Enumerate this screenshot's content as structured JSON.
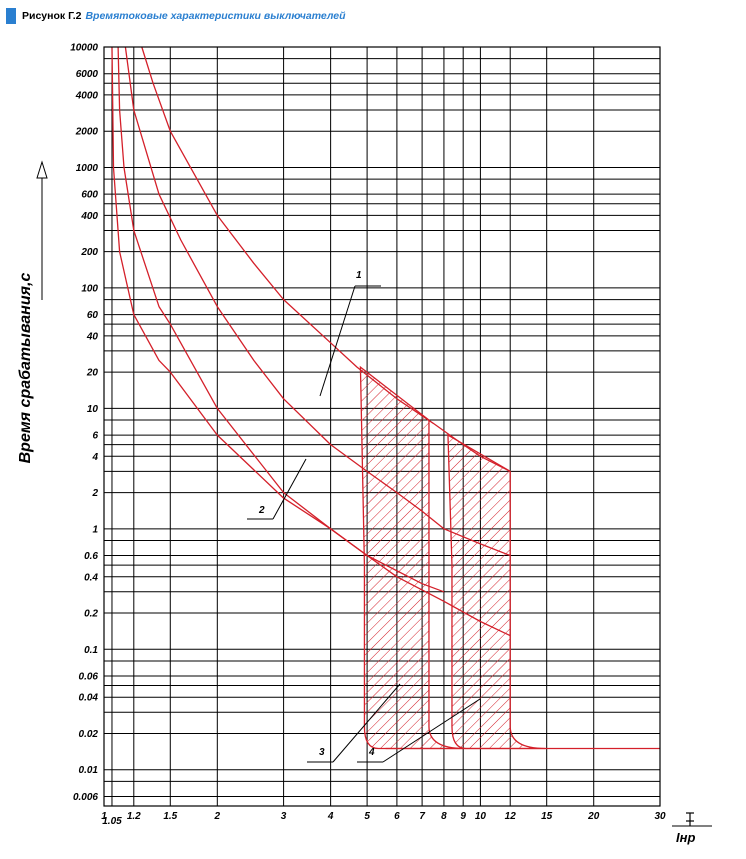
{
  "header": {
    "prefix": "Рисунок Г.2",
    "title": "Времятоковые характеристики выключателей",
    "marker_color": "#2a7fd0"
  },
  "chart_data": {
    "type": "line",
    "xscale": "log",
    "yscale": "log",
    "xlim": [
      1,
      30
    ],
    "ylim": [
      0.005,
      10000
    ],
    "ylabel": "Время срабатывания,с",
    "xlabel": "I/Iнр",
    "x_unit_label": "Iнр",
    "x_ticks": [
      "1",
      "1.05",
      "1.2",
      "1.5",
      "2",
      "3",
      "4",
      "5",
      "6",
      "7",
      "8",
      "9",
      "10",
      "12",
      "15",
      "20",
      "30"
    ],
    "x_tick_values": [
      1,
      1.05,
      1.2,
      1.5,
      2,
      3,
      4,
      5,
      6,
      7,
      8,
      9,
      10,
      12,
      15,
      20,
      30
    ],
    "x_gridlines": [
      1.05,
      1.2,
      1.5,
      2,
      3,
      4,
      5,
      6,
      7,
      8,
      9,
      10,
      12,
      15,
      20,
      30
    ],
    "y_ticks": [
      "10000",
      "6000",
      "4000",
      "2000",
      "1000",
      "600",
      "400",
      "200",
      "100",
      "60",
      "40",
      "20",
      "10",
      "6",
      "4",
      "2",
      "1",
      "0.6",
      "0.4",
      "0.2",
      "0.1",
      "0.06",
      "0.04",
      "0.02",
      "0.01",
      "0.006"
    ],
    "y_tick_values": [
      10000,
      6000,
      4000,
      2000,
      1000,
      600,
      400,
      200,
      100,
      60,
      40,
      20,
      10,
      6,
      4,
      2,
      1,
      0.6,
      0.4,
      0.2,
      0.1,
      0.06,
      0.04,
      0.02,
      0.01,
      0.006
    ],
    "y_gridlines": [
      10000,
      8000,
      6000,
      5000,
      4000,
      3000,
      2000,
      1000,
      800,
      600,
      500,
      400,
      300,
      200,
      100,
      80,
      60,
      50,
      40,
      30,
      20,
      10,
      8,
      6,
      5,
      4,
      3,
      2,
      1,
      0.8,
      0.6,
      0.5,
      0.4,
      0.3,
      0.2,
      0.1,
      0.08,
      0.06,
      0.05,
      0.04,
      0.03,
      0.02,
      0.01,
      0.008,
      0.006
    ],
    "curve_color": "#d4202a",
    "series": [
      {
        "name": "1",
        "kind": "thermal-upper",
        "x": [
          1.26,
          1.35,
          1.5,
          2,
          2.5,
          3,
          4,
          4.7,
          6,
          7.5,
          9,
          10,
          12
        ],
        "y": [
          10000,
          5000,
          2000,
          400,
          160,
          80,
          35,
          22,
          12,
          7.5,
          5,
          4,
          3
        ]
      },
      {
        "name": "1",
        "kind": "thermal-lower",
        "x": [
          1.14,
          1.2,
          1.4,
          1.6,
          2,
          2.5,
          3,
          4,
          5,
          6,
          7,
          8,
          10,
          12
        ],
        "y": [
          10000,
          3000,
          600,
          250,
          70,
          25,
          12,
          5,
          3,
          2,
          1.4,
          1,
          0.75,
          0.6
        ]
      },
      {
        "name": "2",
        "kind": "thermal-upper",
        "x": [
          1.09,
          1.1,
          1.13,
          1.2,
          1.4,
          1.5,
          2,
          3,
          4,
          5,
          6,
          8,
          10,
          12
        ],
        "y": [
          10000,
          3000,
          1000,
          300,
          70,
          50,
          10,
          2,
          1,
          0.6,
          0.4,
          0.25,
          0.17,
          0.13
        ]
      },
      {
        "name": "2",
        "kind": "thermal-lower",
        "x": [
          1.05,
          1.06,
          1.1,
          1.2,
          1.4,
          1.5,
          2,
          3,
          4,
          5,
          7,
          8
        ],
        "y": [
          10000,
          1000,
          200,
          60,
          25,
          20,
          6,
          1.8,
          1,
          0.6,
          0.35,
          0.3
        ]
      }
    ],
    "bands": [
      {
        "name": "3",
        "x_from": 4.8,
        "x_to": 7.3,
        "upper_start_y": 22,
        "upper_end_y": 8,
        "bottom_y": 0.015,
        "hatch": "diagonal"
      },
      {
        "name": "4",
        "x_from": 8.2,
        "x_to": 12,
        "upper_start_y": 6,
        "upper_end_y": 3,
        "bottom_y": 0.015,
        "hatch": "diagonal"
      }
    ],
    "tail_y": 0.015,
    "callout_labels": [
      "1",
      "2",
      "3",
      "4"
    ],
    "grid": true
  }
}
